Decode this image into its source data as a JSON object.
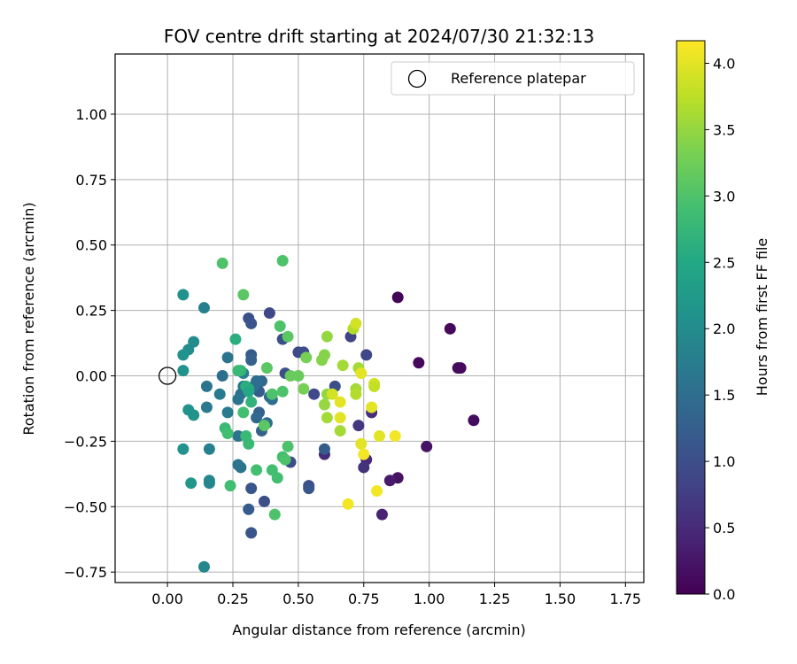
{
  "chart_data": {
    "type": "scatter",
    "title": "FOV centre drift starting at 2024/07/30 21:32:13",
    "xlabel": "Angular distance from reference (arcmin)",
    "ylabel": "Rotation from reference (arcmin)",
    "xlim": [
      -0.2,
      1.82
    ],
    "ylim": [
      -0.79,
      1.23
    ],
    "xticks": [
      0.0,
      0.25,
      0.5,
      0.75,
      1.0,
      1.25,
      1.5,
      1.75
    ],
    "xtick_labels": [
      "0.00",
      "0.25",
      "0.50",
      "0.75",
      "1.00",
      "1.25",
      "1.50",
      "1.75"
    ],
    "yticks": [
      -0.75,
      -0.5,
      -0.25,
      0.0,
      0.25,
      0.5,
      0.75,
      1.0
    ],
    "ytick_labels": [
      "−0.75",
      "−0.50",
      "−0.25",
      "0.00",
      "0.25",
      "0.50",
      "0.75",
      "1.00"
    ],
    "grid": true,
    "legend": {
      "position": "top-right",
      "entries": [
        "Reference platepar"
      ]
    },
    "reference_point": {
      "x": 0.0,
      "y": 0.0,
      "marker": "open-circle",
      "label": "Reference platepar"
    },
    "colorbar": {
      "label": "Hours from first FF file",
      "colormap": "viridis",
      "range": [
        0.0,
        4.17
      ],
      "ticks": [
        0.0,
        0.5,
        1.0,
        1.5,
        2.0,
        2.5,
        3.0,
        3.5,
        4.0
      ],
      "tick_labels": [
        "0.0",
        "0.5",
        "1.0",
        "1.5",
        "2.0",
        "2.5",
        "3.0",
        "3.5",
        "4.0"
      ]
    },
    "points": [
      {
        "x": 0.88,
        "y": 0.3,
        "t": 0.05
      },
      {
        "x": 1.08,
        "y": 0.18,
        "t": 0.08
      },
      {
        "x": 0.96,
        "y": 0.05,
        "t": 0.1
      },
      {
        "x": 1.12,
        "y": 0.03,
        "t": 0.1
      },
      {
        "x": 1.11,
        "y": 0.03,
        "t": 0.12
      },
      {
        "x": 1.17,
        "y": -0.17,
        "t": 0.12
      },
      {
        "x": 0.99,
        "y": -0.27,
        "t": 0.2
      },
      {
        "x": 0.88,
        "y": -0.39,
        "t": 0.2
      },
      {
        "x": 0.85,
        "y": -0.4,
        "t": 0.3
      },
      {
        "x": 0.82,
        "y": -0.53,
        "t": 0.4
      },
      {
        "x": 0.76,
        "y": -0.32,
        "t": 0.5
      },
      {
        "x": 0.75,
        "y": -0.35,
        "t": 0.6
      },
      {
        "x": 0.78,
        "y": -0.14,
        "t": 0.55
      },
      {
        "x": 0.73,
        "y": -0.19,
        "t": 0.65
      },
      {
        "x": 0.6,
        "y": -0.3,
        "t": 0.5
      },
      {
        "x": 0.76,
        "y": 0.08,
        "t": 0.9
      },
      {
        "x": 0.7,
        "y": 0.15,
        "t": 0.85
      },
      {
        "x": 0.64,
        "y": -0.04,
        "t": 1.0
      },
      {
        "x": 0.56,
        "y": -0.07,
        "t": 0.9
      },
      {
        "x": 0.5,
        "y": 0.09,
        "t": 0.9
      },
      {
        "x": 0.52,
        "y": 0.09,
        "t": 0.95
      },
      {
        "x": 0.39,
        "y": 0.24,
        "t": 0.9
      },
      {
        "x": 0.44,
        "y": 0.14,
        "t": 1.0
      },
      {
        "x": 0.45,
        "y": 0.01,
        "t": 1.0
      },
      {
        "x": 0.47,
        "y": -0.33,
        "t": 0.95
      },
      {
        "x": 0.54,
        "y": -0.42,
        "t": 1.0
      },
      {
        "x": 0.54,
        "y": -0.43,
        "t": 1.1
      },
      {
        "x": 0.6,
        "y": -0.28,
        "t": 1.2
      },
      {
        "x": 0.37,
        "y": -0.48,
        "t": 1.0
      },
      {
        "x": 0.32,
        "y": -0.43,
        "t": 1.1
      },
      {
        "x": 0.31,
        "y": -0.51,
        "t": 1.2
      },
      {
        "x": 0.32,
        "y": -0.6,
        "t": 1.1
      },
      {
        "x": 0.31,
        "y": 0.22,
        "t": 1.0
      },
      {
        "x": 0.32,
        "y": 0.2,
        "t": 1.1
      },
      {
        "x": 0.32,
        "y": 0.08,
        "t": 1.2
      },
      {
        "x": 0.32,
        "y": 0.06,
        "t": 1.3
      },
      {
        "x": 0.35,
        "y": -0.06,
        "t": 1.2
      },
      {
        "x": 0.35,
        "y": -0.14,
        "t": 1.3
      },
      {
        "x": 0.34,
        "y": -0.16,
        "t": 1.4
      },
      {
        "x": 0.36,
        "y": -0.21,
        "t": 1.3
      },
      {
        "x": 0.38,
        "y": -0.18,
        "t": 1.5
      },
      {
        "x": 0.39,
        "y": -0.08,
        "t": 1.4
      },
      {
        "x": 0.4,
        "y": -0.09,
        "t": 1.5
      },
      {
        "x": 0.36,
        "y": -0.02,
        "t": 1.4
      },
      {
        "x": 0.34,
        "y": -0.02,
        "t": 1.5
      },
      {
        "x": 0.33,
        "y": -0.04,
        "t": 1.5
      },
      {
        "x": 0.29,
        "y": -0.04,
        "t": 1.6
      },
      {
        "x": 0.28,
        "y": -0.07,
        "t": 1.5
      },
      {
        "x": 0.27,
        "y": -0.09,
        "t": 1.6
      },
      {
        "x": 0.23,
        "y": 0.07,
        "t": 1.6
      },
      {
        "x": 0.21,
        "y": 0.0,
        "t": 1.5
      },
      {
        "x": 0.29,
        "y": 0.01,
        "t": 1.8
      },
      {
        "x": 0.27,
        "y": -0.34,
        "t": 1.6
      },
      {
        "x": 0.28,
        "y": -0.35,
        "t": 1.6
      },
      {
        "x": 0.27,
        "y": -0.23,
        "t": 1.6
      },
      {
        "x": 0.23,
        "y": -0.14,
        "t": 1.7
      },
      {
        "x": 0.2,
        "y": -0.07,
        "t": 1.7
      },
      {
        "x": 0.15,
        "y": -0.04,
        "t": 1.6
      },
      {
        "x": 0.15,
        "y": -0.12,
        "t": 1.7
      },
      {
        "x": 0.16,
        "y": -0.28,
        "t": 1.8
      },
      {
        "x": 0.16,
        "y": -0.41,
        "t": 1.9
      },
      {
        "x": 0.16,
        "y": -0.4,
        "t": 1.9
      },
      {
        "x": 0.14,
        "y": 0.26,
        "t": 1.8
      },
      {
        "x": 0.14,
        "y": -0.73,
        "t": 1.9
      },
      {
        "x": 0.1,
        "y": 0.13,
        "t": 2.0
      },
      {
        "x": 0.08,
        "y": 0.1,
        "t": 2.0
      },
      {
        "x": 0.06,
        "y": 0.08,
        "t": 2.1
      },
      {
        "x": 0.06,
        "y": 0.02,
        "t": 2.1
      },
      {
        "x": 0.06,
        "y": 0.31,
        "t": 2.1
      },
      {
        "x": 0.06,
        "y": -0.28,
        "t": 2.1
      },
      {
        "x": 0.08,
        "y": -0.13,
        "t": 2.1
      },
      {
        "x": 0.1,
        "y": -0.15,
        "t": 2.1
      },
      {
        "x": 0.09,
        "y": -0.41,
        "t": 2.2
      },
      {
        "x": 0.26,
        "y": 0.14,
        "t": 2.6
      },
      {
        "x": 0.28,
        "y": 0.02,
        "t": 2.7
      },
      {
        "x": 0.3,
        "y": -0.04,
        "t": 2.6
      },
      {
        "x": 0.31,
        "y": -0.05,
        "t": 2.6
      },
      {
        "x": 0.31,
        "y": -0.06,
        "t": 2.5
      },
      {
        "x": 0.32,
        "y": -0.1,
        "t": 2.7
      },
      {
        "x": 0.27,
        "y": 0.02,
        "t": 2.8
      },
      {
        "x": 0.29,
        "y": -0.14,
        "t": 2.9
      },
      {
        "x": 0.3,
        "y": -0.23,
        "t": 2.8
      },
      {
        "x": 0.31,
        "y": -0.26,
        "t": 2.8
      },
      {
        "x": 0.22,
        "y": -0.2,
        "t": 2.8
      },
      {
        "x": 0.23,
        "y": -0.22,
        "t": 2.9
      },
      {
        "x": 0.24,
        "y": -0.42,
        "t": 2.9
      },
      {
        "x": 0.34,
        "y": -0.36,
        "t": 2.9
      },
      {
        "x": 0.4,
        "y": -0.36,
        "t": 2.9
      },
      {
        "x": 0.42,
        "y": -0.39,
        "t": 2.9
      },
      {
        "x": 0.44,
        "y": -0.31,
        "t": 2.9
      },
      {
        "x": 0.45,
        "y": -0.32,
        "t": 3.0
      },
      {
        "x": 0.46,
        "y": -0.27,
        "t": 3.0
      },
      {
        "x": 0.41,
        "y": -0.53,
        "t": 3.0
      },
      {
        "x": 0.37,
        "y": -0.19,
        "t": 3.1
      },
      {
        "x": 0.44,
        "y": -0.06,
        "t": 3.0
      },
      {
        "x": 0.4,
        "y": -0.07,
        "t": 3.0
      },
      {
        "x": 0.38,
        "y": 0.03,
        "t": 3.1
      },
      {
        "x": 0.21,
        "y": 0.43,
        "t": 3.0
      },
      {
        "x": 0.44,
        "y": 0.44,
        "t": 3.0
      },
      {
        "x": 0.29,
        "y": 0.31,
        "t": 3.1
      },
      {
        "x": 0.43,
        "y": 0.19,
        "t": 3.0
      },
      {
        "x": 0.46,
        "y": 0.15,
        "t": 3.1
      },
      {
        "x": 0.47,
        "y": 0.0,
        "t": 3.2
      },
      {
        "x": 0.5,
        "y": 0.0,
        "t": 3.2
      },
      {
        "x": 0.52,
        "y": -0.05,
        "t": 3.3
      },
      {
        "x": 0.53,
        "y": 0.07,
        "t": 3.3
      },
      {
        "x": 0.59,
        "y": 0.06,
        "t": 3.4
      },
      {
        "x": 0.6,
        "y": 0.08,
        "t": 3.4
      },
      {
        "x": 0.61,
        "y": 0.15,
        "t": 3.5
      },
      {
        "x": 0.6,
        "y": -0.11,
        "t": 3.5
      },
      {
        "x": 0.61,
        "y": -0.07,
        "t": 3.5
      },
      {
        "x": 0.61,
        "y": -0.16,
        "t": 3.6
      },
      {
        "x": 0.66,
        "y": -0.21,
        "t": 3.6
      },
      {
        "x": 0.67,
        "y": 0.04,
        "t": 3.6
      },
      {
        "x": 0.71,
        "y": 0.18,
        "t": 3.7
      },
      {
        "x": 0.72,
        "y": 0.2,
        "t": 3.9
      },
      {
        "x": 0.72,
        "y": -0.05,
        "t": 3.6
      },
      {
        "x": 0.73,
        "y": 0.03,
        "t": 3.6
      },
      {
        "x": 0.74,
        "y": 0.01,
        "t": 4.0
      },
      {
        "x": 0.72,
        "y": -0.07,
        "t": 3.7
      },
      {
        "x": 0.63,
        "y": -0.07,
        "t": 3.9
      },
      {
        "x": 0.66,
        "y": -0.1,
        "t": 4.0
      },
      {
        "x": 0.66,
        "y": -0.16,
        "t": 4.0
      },
      {
        "x": 0.74,
        "y": -0.26,
        "t": 4.0
      },
      {
        "x": 0.75,
        "y": -0.3,
        "t": 4.1
      },
      {
        "x": 0.79,
        "y": -0.03,
        "t": 3.9
      },
      {
        "x": 0.79,
        "y": -0.04,
        "t": 3.8
      },
      {
        "x": 0.78,
        "y": -0.12,
        "t": 4.0
      },
      {
        "x": 0.81,
        "y": -0.23,
        "t": 4.0
      },
      {
        "x": 0.87,
        "y": -0.23,
        "t": 4.1
      },
      {
        "x": 0.69,
        "y": -0.49,
        "t": 4.1
      },
      {
        "x": 0.8,
        "y": -0.44,
        "t": 4.1
      }
    ]
  }
}
